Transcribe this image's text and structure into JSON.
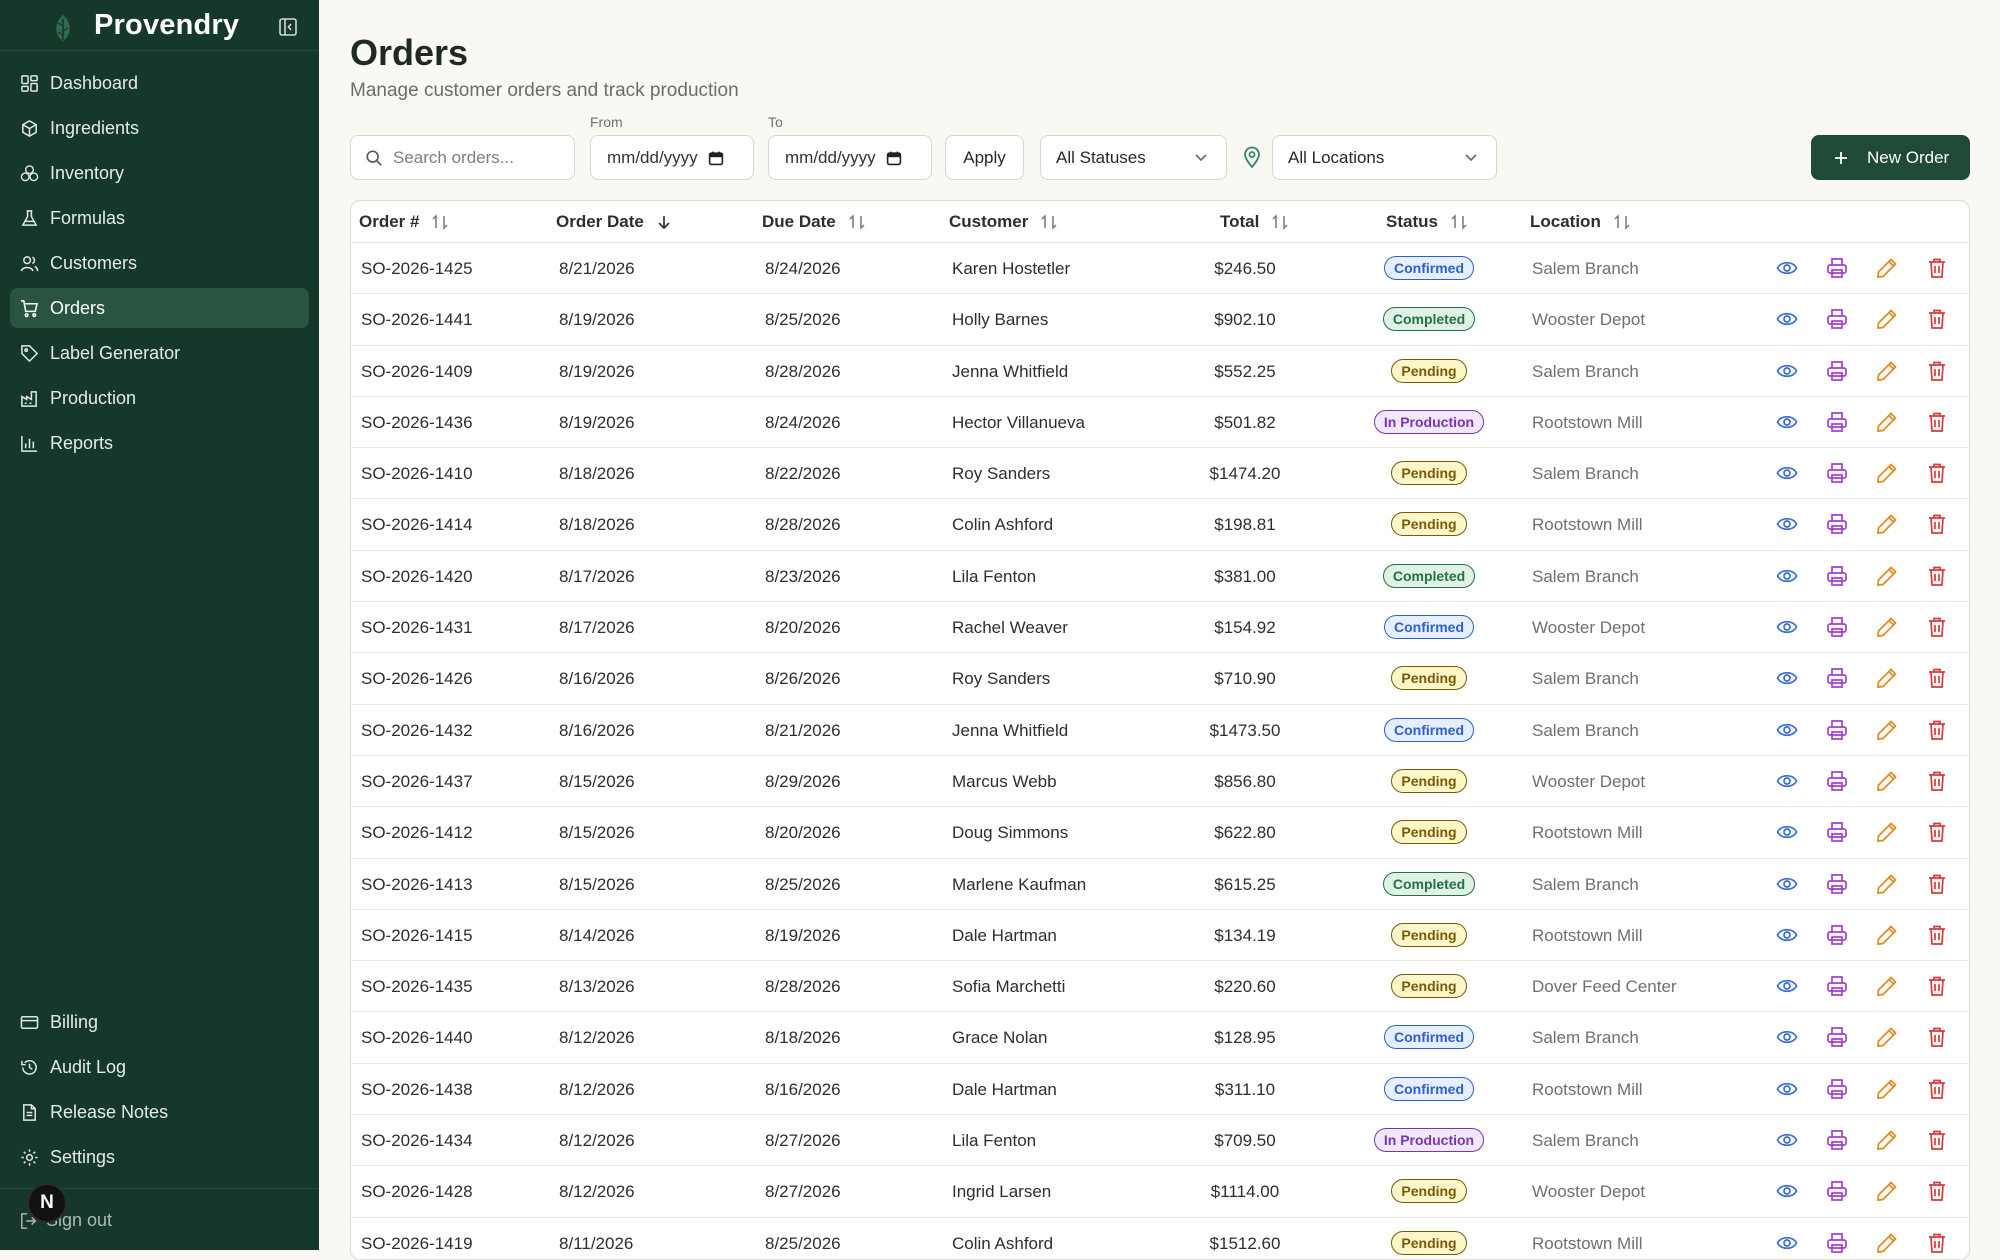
{
  "app": {
    "name": "Provendry"
  },
  "sidebar": {
    "items": [
      {
        "label": "Dashboard",
        "icon": "dashboard-icon"
      },
      {
        "label": "Ingredients",
        "icon": "box-icon"
      },
      {
        "label": "Inventory",
        "icon": "boxes-icon"
      },
      {
        "label": "Formulas",
        "icon": "flask-icon"
      },
      {
        "label": "Customers",
        "icon": "users-icon"
      },
      {
        "label": "Orders",
        "icon": "cart-icon",
        "active": true
      },
      {
        "label": "Label Generator",
        "icon": "tag-icon"
      },
      {
        "label": "Production",
        "icon": "factory-icon"
      },
      {
        "label": "Reports",
        "icon": "chart-icon"
      }
    ],
    "bottom_items": [
      {
        "label": "Billing",
        "icon": "credit-card-icon"
      },
      {
        "label": "Audit Log",
        "icon": "history-icon"
      },
      {
        "label": "Release Notes",
        "icon": "document-icon"
      },
      {
        "label": "Settings",
        "icon": "gear-icon"
      }
    ],
    "sign_out": "Sign out",
    "avatar_initial": "N"
  },
  "page": {
    "title": "Orders",
    "subtitle": "Manage customer orders and track production"
  },
  "filters": {
    "search_placeholder": "Search orders...",
    "from_label": "From",
    "to_label": "To",
    "from_value": "mm/dd/yyyy",
    "to_value": "mm/dd/yyyy",
    "apply_label": "Apply",
    "status_value": "All Statuses",
    "location_value": "All Locations",
    "new_order_label": "New Order"
  },
  "table": {
    "headers": {
      "order_num": "Order #",
      "order_date": "Order Date",
      "due_date": "Due Date",
      "customer": "Customer",
      "total": "Total",
      "status": "Status",
      "location": "Location"
    },
    "rows": [
      {
        "num": "SO-2026-1425",
        "od": "8/21/2026",
        "dd": "8/24/2026",
        "customer": "Karen Hostetler",
        "total": "$246.50",
        "status": "Confirmed",
        "location": "Salem Branch"
      },
      {
        "num": "SO-2026-1441",
        "od": "8/19/2026",
        "dd": "8/25/2026",
        "customer": "Holly Barnes",
        "total": "$902.10",
        "status": "Completed",
        "location": "Wooster Depot"
      },
      {
        "num": "SO-2026-1409",
        "od": "8/19/2026",
        "dd": "8/28/2026",
        "customer": "Jenna Whitfield",
        "total": "$552.25",
        "status": "Pending",
        "location": "Salem Branch"
      },
      {
        "num": "SO-2026-1436",
        "od": "8/19/2026",
        "dd": "8/24/2026",
        "customer": "Hector Villanueva",
        "total": "$501.82",
        "status": "In Production",
        "location": "Rootstown Mill"
      },
      {
        "num": "SO-2026-1410",
        "od": "8/18/2026",
        "dd": "8/22/2026",
        "customer": "Roy Sanders",
        "total": "$1474.20",
        "status": "Pending",
        "location": "Salem Branch"
      },
      {
        "num": "SO-2026-1414",
        "od": "8/18/2026",
        "dd": "8/28/2026",
        "customer": "Colin Ashford",
        "total": "$198.81",
        "status": "Pending",
        "location": "Rootstown Mill"
      },
      {
        "num": "SO-2026-1420",
        "od": "8/17/2026",
        "dd": "8/23/2026",
        "customer": "Lila Fenton",
        "total": "$381.00",
        "status": "Completed",
        "location": "Salem Branch"
      },
      {
        "num": "SO-2026-1431",
        "od": "8/17/2026",
        "dd": "8/20/2026",
        "customer": "Rachel Weaver",
        "total": "$154.92",
        "status": "Confirmed",
        "location": "Wooster Depot"
      },
      {
        "num": "SO-2026-1426",
        "od": "8/16/2026",
        "dd": "8/26/2026",
        "customer": "Roy Sanders",
        "total": "$710.90",
        "status": "Pending",
        "location": "Salem Branch"
      },
      {
        "num": "SO-2026-1432",
        "od": "8/16/2026",
        "dd": "8/21/2026",
        "customer": "Jenna Whitfield",
        "total": "$1473.50",
        "status": "Confirmed",
        "location": "Salem Branch"
      },
      {
        "num": "SO-2026-1437",
        "od": "8/15/2026",
        "dd": "8/29/2026",
        "customer": "Marcus Webb",
        "total": "$856.80",
        "status": "Pending",
        "location": "Wooster Depot"
      },
      {
        "num": "SO-2026-1412",
        "od": "8/15/2026",
        "dd": "8/20/2026",
        "customer": "Doug Simmons",
        "total": "$622.80",
        "status": "Pending",
        "location": "Rootstown Mill"
      },
      {
        "num": "SO-2026-1413",
        "od": "8/15/2026",
        "dd": "8/25/2026",
        "customer": "Marlene Kaufman",
        "total": "$615.25",
        "status": "Completed",
        "location": "Salem Branch"
      },
      {
        "num": "SO-2026-1415",
        "od": "8/14/2026",
        "dd": "8/19/2026",
        "customer": "Dale Hartman",
        "total": "$134.19",
        "status": "Pending",
        "location": "Rootstown Mill"
      },
      {
        "num": "SO-2026-1435",
        "od": "8/13/2026",
        "dd": "8/28/2026",
        "customer": "Sofia Marchetti",
        "total": "$220.60",
        "status": "Pending",
        "location": "Dover Feed Center"
      },
      {
        "num": "SO-2026-1440",
        "od": "8/12/2026",
        "dd": "8/18/2026",
        "customer": "Grace Nolan",
        "total": "$128.95",
        "status": "Confirmed",
        "location": "Salem Branch"
      },
      {
        "num": "SO-2026-1438",
        "od": "8/12/2026",
        "dd": "8/16/2026",
        "customer": "Dale Hartman",
        "total": "$311.10",
        "status": "Confirmed",
        "location": "Rootstown Mill"
      },
      {
        "num": "SO-2026-1434",
        "od": "8/12/2026",
        "dd": "8/27/2026",
        "customer": "Lila Fenton",
        "total": "$709.50",
        "status": "In Production",
        "location": "Salem Branch"
      },
      {
        "num": "SO-2026-1428",
        "od": "8/12/2026",
        "dd": "8/27/2026",
        "customer": "Ingrid Larsen",
        "total": "$1114.00",
        "status": "Pending",
        "location": "Wooster Depot"
      },
      {
        "num": "SO-2026-1419",
        "od": "8/11/2026",
        "dd": "8/25/2026",
        "customer": "Colin Ashford",
        "total": "$1512.60",
        "status": "Pending",
        "location": "Rootstown Mill"
      }
    ]
  },
  "colors": {
    "sidebar_bg": "#16382a",
    "primary": "#1f4a36",
    "view_icon": "#3b6fd6",
    "print_icon": "#a23fd1",
    "edit_icon": "#e08a1e",
    "delete_icon": "#d93a3a"
  }
}
